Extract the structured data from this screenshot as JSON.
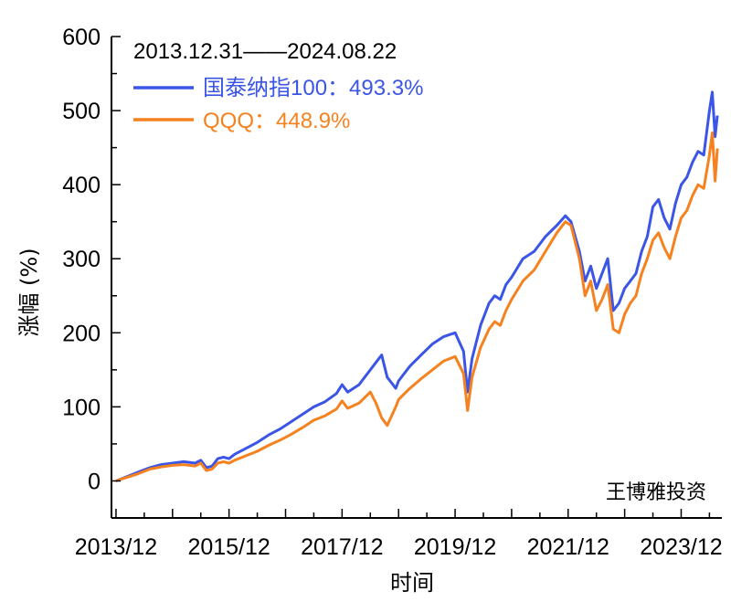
{
  "chart_data": {
    "type": "line",
    "title": "2013.12.31——2024.08.22",
    "xlabel": "时间",
    "ylabel": "涨幅 (%)",
    "ylim": [
      -50,
      600
    ],
    "yticks": [
      0,
      100,
      200,
      300,
      400,
      500,
      600
    ],
    "xlim": [
      2013.92,
      2024.72
    ],
    "xtick_labels": [
      "2013/12",
      "2015/12",
      "2017/12",
      "2019/12",
      "2021/12",
      "2023/12"
    ],
    "xtick_values": [
      2014.0,
      2016.0,
      2018.0,
      2020.0,
      2022.0,
      2024.0
    ],
    "watermark": "王博雅投资",
    "legend_position": "top-left",
    "series": [
      {
        "name": "国泰纳指100",
        "label": "国泰纳指100：493.3%",
        "color": "#3b55e6",
        "x": [
          2014.0,
          2014.2,
          2014.4,
          2014.6,
          2014.8,
          2015.0,
          2015.2,
          2015.4,
          2015.5,
          2015.6,
          2015.7,
          2015.8,
          2015.9,
          2016.0,
          2016.1,
          2016.3,
          2016.5,
          2016.7,
          2016.9,
          2017.1,
          2017.3,
          2017.5,
          2017.7,
          2017.9,
          2018.0,
          2018.1,
          2018.3,
          2018.5,
          2018.6,
          2018.7,
          2018.8,
          2018.95,
          2019.0,
          2019.2,
          2019.4,
          2019.6,
          2019.8,
          2020.0,
          2020.15,
          2020.22,
          2020.3,
          2020.45,
          2020.6,
          2020.7,
          2020.8,
          2020.9,
          2021.0,
          2021.2,
          2021.4,
          2021.6,
          2021.8,
          2021.95,
          2022.05,
          2022.2,
          2022.3,
          2022.4,
          2022.5,
          2022.6,
          2022.7,
          2022.8,
          2022.9,
          2023.0,
          2023.1,
          2023.2,
          2023.3,
          2023.4,
          2023.5,
          2023.6,
          2023.7,
          2023.8,
          2023.9,
          2024.0,
          2024.1,
          2024.2,
          2024.3,
          2024.4,
          2024.5,
          2024.55,
          2024.6,
          2024.64
        ],
        "values": [
          0,
          6,
          12,
          18,
          22,
          24,
          26,
          24,
          28,
          18,
          20,
          30,
          32,
          30,
          36,
          44,
          52,
          62,
          70,
          80,
          90,
          100,
          107,
          118,
          130,
          120,
          130,
          150,
          160,
          170,
          140,
          125,
          135,
          155,
          170,
          185,
          195,
          200,
          175,
          120,
          165,
          210,
          240,
          250,
          245,
          265,
          275,
          300,
          310,
          330,
          345,
          358,
          350,
          310,
          270,
          290,
          260,
          280,
          300,
          230,
          240,
          260,
          270,
          280,
          310,
          330,
          370,
          380,
          355,
          340,
          375,
          400,
          410,
          430,
          445,
          440,
          500,
          525,
          465,
          493.3
        ]
      },
      {
        "name": "QQQ",
        "label": "QQQ：448.9%",
        "color": "#f5821f",
        "x": [
          2014.0,
          2014.2,
          2014.4,
          2014.6,
          2014.8,
          2015.0,
          2015.2,
          2015.4,
          2015.5,
          2015.6,
          2015.7,
          2015.8,
          2015.9,
          2016.0,
          2016.1,
          2016.3,
          2016.5,
          2016.7,
          2016.9,
          2017.1,
          2017.3,
          2017.5,
          2017.7,
          2017.9,
          2018.0,
          2018.1,
          2018.3,
          2018.5,
          2018.6,
          2018.7,
          2018.8,
          2018.95,
          2019.0,
          2019.2,
          2019.4,
          2019.6,
          2019.8,
          2020.0,
          2020.15,
          2020.22,
          2020.3,
          2020.45,
          2020.6,
          2020.7,
          2020.8,
          2020.9,
          2021.0,
          2021.2,
          2021.4,
          2021.6,
          2021.8,
          2021.95,
          2022.05,
          2022.2,
          2022.3,
          2022.4,
          2022.5,
          2022.6,
          2022.7,
          2022.8,
          2022.9,
          2023.0,
          2023.1,
          2023.2,
          2023.3,
          2023.4,
          2023.5,
          2023.6,
          2023.7,
          2023.8,
          2023.9,
          2024.0,
          2024.1,
          2024.2,
          2024.3,
          2024.4,
          2024.5,
          2024.55,
          2024.6,
          2024.64
        ],
        "values": [
          0,
          5,
          10,
          16,
          19,
          21,
          22,
          20,
          24,
          14,
          16,
          24,
          26,
          24,
          28,
          34,
          40,
          48,
          55,
          63,
          72,
          82,
          88,
          97,
          108,
          98,
          105,
          120,
          105,
          85,
          75,
          100,
          110,
          125,
          138,
          150,
          162,
          168,
          145,
          95,
          140,
          180,
          205,
          215,
          210,
          230,
          245,
          270,
          285,
          310,
          335,
          350,
          345,
          300,
          250,
          270,
          230,
          245,
          265,
          205,
          200,
          225,
          240,
          250,
          280,
          300,
          325,
          335,
          315,
          300,
          330,
          355,
          365,
          385,
          400,
          395,
          440,
          470,
          405,
          448.9
        ]
      }
    ]
  }
}
